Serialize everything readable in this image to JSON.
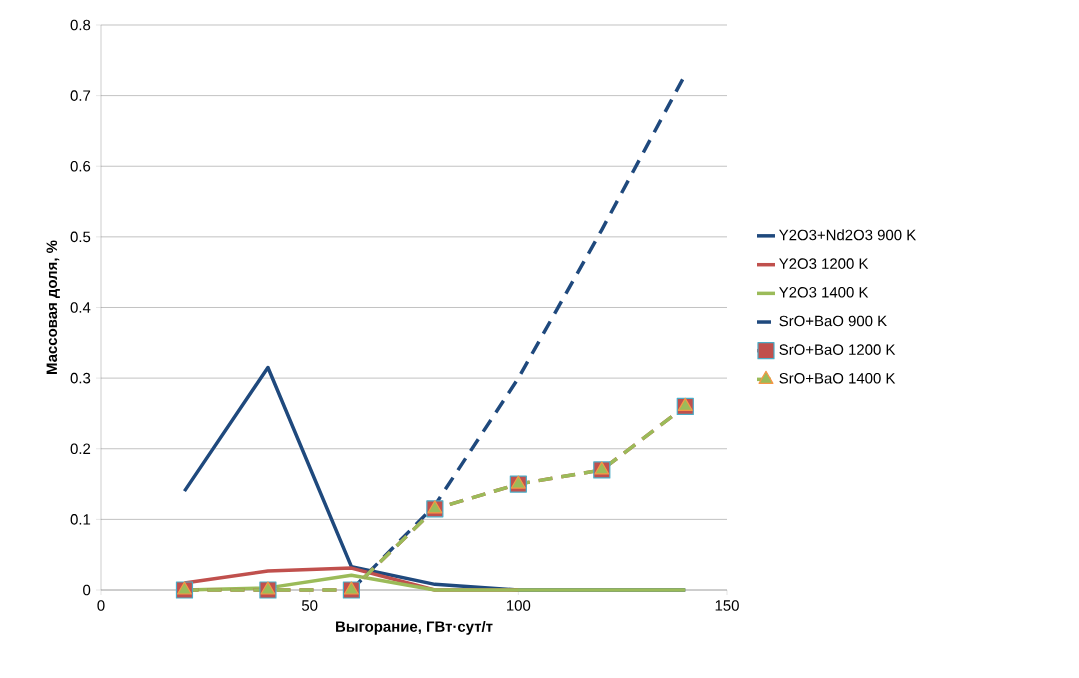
{
  "chart_data": {
    "type": "line",
    "xlabel": "Выгорание, ГВт·сут/т",
    "ylabel": "Массовая доля, %",
    "x": [
      20,
      40,
      60,
      80,
      100,
      120,
      140
    ],
    "xlim": [
      0,
      150
    ],
    "xticks": [
      0,
      50,
      100,
      150
    ],
    "ylim": [
      0,
      0.8
    ],
    "yticks": [
      0,
      0.1,
      0.2,
      0.3,
      0.4,
      0.5,
      0.6,
      0.7,
      0.8
    ],
    "grid": "y",
    "legend": "right",
    "series": [
      {
        "name": "Y2O3+Nd2O3 900 K",
        "color": "#1f497d",
        "line_style": "solid",
        "marker": "none",
        "values": [
          0.14,
          0.315,
          0.033,
          0.008,
          0,
          0,
          0
        ]
      },
      {
        "name": "Y2O3 1200 K",
        "color": "#c0504d",
        "line_style": "solid",
        "marker": "none",
        "values": [
          0.01,
          0.027,
          0.031,
          0,
          0,
          null,
          null
        ]
      },
      {
        "name": "Y2O3 1400 K",
        "color": "#9bbb59",
        "line_style": "solid",
        "marker": "none",
        "values": [
          0,
          0.003,
          0.021,
          0,
          0,
          0,
          0
        ]
      },
      {
        "name": "SrO+BaO 900 K",
        "color": "#1f497d",
        "line_style": "dashed",
        "marker": "none",
        "values": [
          null,
          null,
          0,
          0.12,
          0.3,
          0.51,
          0.73
        ]
      },
      {
        "name": "SrO+BaO 1200 K",
        "color": "#c0504d",
        "line_style": "dashed",
        "marker": "square",
        "values": [
          0,
          0,
          0,
          0.115,
          0.15,
          0.17,
          0.26
        ]
      },
      {
        "name": "SrO+BaO 1400 K",
        "color": "#9bbb59",
        "line_style": "dashed",
        "marker": "triangle",
        "values": [
          0,
          0,
          0,
          0.115,
          0.15,
          0.17,
          0.26
        ]
      }
    ]
  }
}
